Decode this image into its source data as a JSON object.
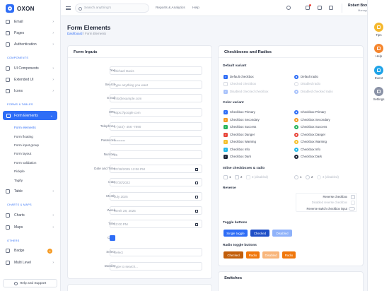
{
  "app": {
    "name": "OXON"
  },
  "sidebar": {
    "items": [
      {
        "label": "Email"
      },
      {
        "label": "Pages"
      },
      {
        "label": "Authentication"
      },
      {
        "label": "UI Components"
      },
      {
        "label": "Extended UI"
      },
      {
        "label": "Icons"
      },
      {
        "label": "Form Elements"
      },
      {
        "label": "Table"
      },
      {
        "label": "Charts"
      },
      {
        "label": "Maps"
      },
      {
        "label": "Badge",
        "badge": "4"
      },
      {
        "label": "Multi Level"
      }
    ],
    "sections": [
      "COMPONENTS",
      "FORMS & TABLES",
      "CHARTS & MAPS",
      "OTHERS"
    ],
    "subitems": [
      "Form elements",
      "Form floating",
      "Form input group",
      "Form layout",
      "Form validation",
      "Pickple",
      "Tagify"
    ],
    "help_label": "Help and Support"
  },
  "topbar": {
    "search_placeholder": "Search anything's",
    "links": [
      "Reports & Analytics",
      "Help"
    ],
    "user": {
      "name": "Robert Brown",
      "role": "Manager"
    }
  },
  "rail": {
    "items": [
      {
        "label": "Tips",
        "color": "#f5b82e"
      },
      {
        "label": "Help",
        "color": "#f5862e"
      },
      {
        "label": "Event",
        "color": "#20a4e8"
      },
      {
        "label": "Settings",
        "color": "#8a92a6"
      }
    ]
  },
  "page": {
    "title": "Form Elements",
    "breadcrumb_home": "Dashboard",
    "breadcrumb_current": "/ Form Elements"
  },
  "form_inputs": {
    "title": "Form Inputs",
    "rows": [
      {
        "label": "Text",
        "value": "Michael Davis"
      },
      {
        "label": "Search",
        "value": "Type anything you want"
      },
      {
        "label": "Email",
        "value": "info@example.com"
      },
      {
        "label": "URL",
        "value": "https://google.com"
      },
      {
        "label": "Telephone",
        "value": "1-(422)- 456 -7890"
      },
      {
        "label": "Password",
        "value": "••••••••••"
      },
      {
        "label": "Number",
        "value": "25"
      },
      {
        "label": "Date and Time",
        "value": "07/28/2025 12:06 PM"
      },
      {
        "label": "Date",
        "value": "07/30/2022"
      },
      {
        "label": "Month",
        "value": "July 2025"
      },
      {
        "label": "Week",
        "value": "Week 28, 2025"
      },
      {
        "label": "Time",
        "value": "12:00 PM"
      },
      {
        "label": "Color",
        "value": "",
        "color": "#2e6df6"
      },
      {
        "label": "Select",
        "value": "Select"
      },
      {
        "label": "Datalist",
        "value": "Type to search..."
      }
    ]
  },
  "checkboxes": {
    "title": "Checkboxes and Radios",
    "default_title": "Default variant",
    "default_checkboxes": [
      {
        "label": "Default checkbox",
        "state": "checked"
      },
      {
        "label": "Checked checkbox",
        "state": "disabled"
      },
      {
        "label": "Disabled checked checkbox",
        "state": "disabled-checked"
      }
    ],
    "default_radios": [
      {
        "label": "Default radio",
        "state": "checked"
      },
      {
        "label": "Disabled radio",
        "state": "disabled"
      },
      {
        "label": "Disabled checked radio",
        "state": "disabled-checked"
      }
    ],
    "color_title": "Color variant",
    "color_checkboxes": [
      {
        "label": "Checkbox Primary",
        "color": "#2e6df6"
      },
      {
        "label": "Checkbox Secondary",
        "color": "#f59a23"
      },
      {
        "label": "Checkbox Success",
        "color": "#25b35a"
      },
      {
        "label": "Checkbox Danger",
        "color": "#e8463b"
      },
      {
        "label": "Checkbox Warning",
        "color": "#f5c12e"
      },
      {
        "label": "Checkbox Info",
        "color": "#22b8e8"
      },
      {
        "label": "Checkbox Dark",
        "color": "#1d2435"
      }
    ],
    "color_radios": [
      {
        "label": "Checkbox Primary",
        "color": "#2e6df6"
      },
      {
        "label": "Checkbox Secondary",
        "color": "#f59a23"
      },
      {
        "label": "Checkbox Success",
        "color": "#25b35a"
      },
      {
        "label": "Checkbox Danger",
        "color": "#e8463b"
      },
      {
        "label": "Checkbox Warning",
        "color": "#f5c12e"
      },
      {
        "label": "Checkbox Info",
        "color": "#22b8e8"
      },
      {
        "label": "Checkbox Dark",
        "color": "#1d2435"
      }
    ],
    "inline_title": "Inline checkboxes & radio",
    "inline_checks": [
      "1",
      "2",
      "3 (disabled)"
    ],
    "inline_radios": [
      "1",
      "2",
      "3 (disabled)"
    ],
    "reverse_title": "Reverse",
    "reverse_items": [
      {
        "label": "Reverse checkbox",
        "state": "normal"
      },
      {
        "label": "Disabled reverse checkbox",
        "state": "disabled"
      },
      {
        "label": "Reverse switch checkbox input",
        "state": "switch"
      }
    ],
    "toggle_title": "Toggle buttons",
    "toggles": [
      {
        "label": "Single toggle",
        "color": "#2e6df6",
        "light": false
      },
      {
        "label": "Checked",
        "color": "#1f4fc7",
        "light": false
      },
      {
        "label": "Disabled",
        "color": "#8fb2fa",
        "light": true
      }
    ],
    "radio_toggle_title": "Radio toggle buttons",
    "radio_toggles": [
      {
        "label": "Checked",
        "color": "#c25e0a",
        "light": false
      },
      {
        "label": "Radio",
        "color": "#f0770b",
        "light": false
      },
      {
        "label": "Disabled",
        "color": "#f8b57a",
        "light": true
      },
      {
        "label": "Radio",
        "color": "#f0770b",
        "light": false
      }
    ]
  },
  "switches": {
    "title": "Switches"
  }
}
